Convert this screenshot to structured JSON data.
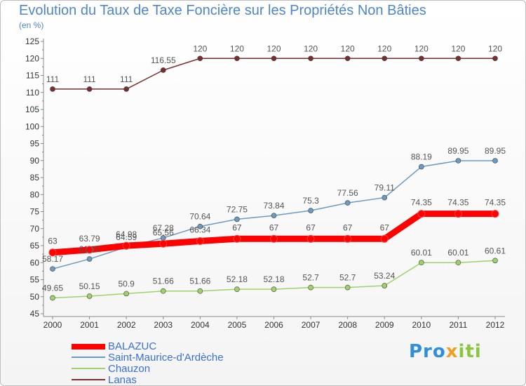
{
  "title": "Evolution du Taux de Taxe Foncière sur les Propriétés Non Bâties",
  "subtitle": "(en %)",
  "logo": {
    "text_part1": "Pro",
    "text_part2": "x",
    "text_part3": "iti"
  },
  "chart_data": {
    "type": "line",
    "x": [
      "2000",
      "2001",
      "2002",
      "2003",
      "2004",
      "2005",
      "2006",
      "2007",
      "2008",
      "2009",
      "2010",
      "2011",
      "2012"
    ],
    "ylim": [
      45,
      125
    ],
    "yticks": [
      45,
      50,
      55,
      60,
      65,
      70,
      75,
      80,
      85,
      90,
      95,
      100,
      105,
      110,
      115,
      120,
      125
    ],
    "grid": false,
    "legend_position": "bottom-left",
    "series": [
      {
        "name": "Lanas",
        "color": "#7a2e2e",
        "values": [
          111,
          111,
          111,
          116.55,
          120,
          120,
          120,
          120,
          120,
          120,
          120,
          120,
          120
        ],
        "labels": [
          "111",
          "111",
          "111",
          "116.55",
          "120",
          "120",
          "120",
          "120",
          "120",
          "120",
          "120",
          "120",
          "120"
        ]
      },
      {
        "name": "Saint-Maurice-d'Ardèche",
        "color": "#6b9bc3",
        "values": [
          58.17,
          61.07,
          64.59,
          67.28,
          70.64,
          72.75,
          73.84,
          75.3,
          77.56,
          79.11,
          88.19,
          89.95,
          89.95
        ],
        "labels": [
          "58.17",
          "61.07",
          "64.59",
          "67.28",
          "70.64",
          "72.75",
          "73.84",
          "75.3",
          "77.56",
          "79.11",
          "88.19",
          "89.95",
          "89.95"
        ]
      },
      {
        "name": "Chauzon",
        "color": "#9ed36a",
        "values": [
          49.65,
          50.15,
          50.9,
          51.66,
          51.66,
          52.18,
          52.18,
          52.7,
          52.7,
          53.24,
          60.01,
          60.01,
          60.61
        ],
        "labels": [
          "49.65",
          "50.15",
          "50.9",
          "51.66",
          "51.66",
          "52.18",
          "52.18",
          "52.7",
          "52.7",
          "53.24",
          "60.01",
          "60.01",
          "60.61"
        ]
      },
      {
        "name": "BALAZUC",
        "color": "#ff0000",
        "values": [
          63,
          63.79,
          64.98,
          65.56,
          66.34,
          67,
          67,
          67,
          67,
          67,
          74.35,
          74.35,
          74.35
        ],
        "labels": [
          "63",
          "63.79",
          "64.98",
          "65.56",
          "66.34",
          "67",
          "67",
          "67",
          "67",
          "67",
          "74.35",
          "74.35",
          "74.35"
        ]
      }
    ]
  },
  "legend": [
    {
      "name": "BALAZUC",
      "color": "#ff0000",
      "thick": true
    },
    {
      "name": "Saint-Maurice-d'Ardèche",
      "color": "#6b9bc3",
      "thick": false
    },
    {
      "name": "Chauzon",
      "color": "#9ed36a",
      "thick": false
    },
    {
      "name": "Lanas",
      "color": "#7a2e2e",
      "thick": false
    }
  ]
}
